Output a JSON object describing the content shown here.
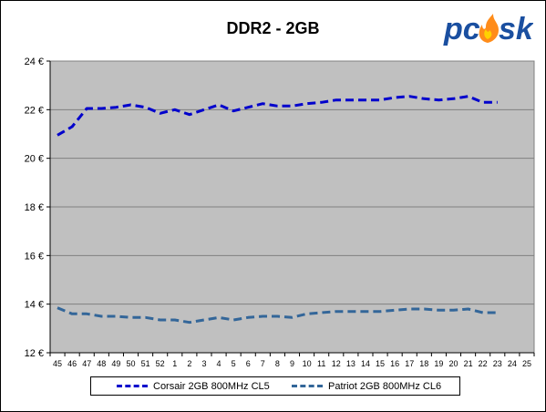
{
  "title": "DDR2 - 2GB",
  "logo_text": "pc sk",
  "colors": {
    "plot_bg": "#C0C0C0",
    "grid": "#808080",
    "corsair": "#0000CC",
    "patriot": "#336699"
  },
  "chart_data": {
    "type": "line",
    "title": "DDR2 - 2GB",
    "xlabel": "",
    "ylabel": "",
    "categories": [
      "45",
      "46",
      "47",
      "48",
      "49",
      "50",
      "51",
      "52",
      "1",
      "2",
      "3",
      "4",
      "5",
      "6",
      "7",
      "8",
      "9",
      "10",
      "11",
      "12",
      "13",
      "14",
      "15",
      "16",
      "17",
      "18",
      "19",
      "20",
      "21",
      "22",
      "23",
      "24",
      "25"
    ],
    "ylim": [
      12,
      24
    ],
    "yticks": [
      12,
      14,
      16,
      18,
      20,
      22,
      24
    ],
    "ytick_labels": [
      "12 €",
      "14 €",
      "16 €",
      "18 €",
      "20 €",
      "22 €",
      "24 €"
    ],
    "grid": true,
    "legend": "bottom",
    "series": [
      {
        "name": "Corsair 2GB 800MHz CL5",
        "color": "#0000CC",
        "values": [
          20.95,
          21.3,
          22.05,
          22.05,
          22.1,
          22.2,
          22.1,
          21.85,
          22.0,
          21.8,
          22.0,
          22.2,
          21.95,
          22.1,
          22.25,
          22.15,
          22.15,
          22.25,
          22.3,
          22.4,
          22.4,
          22.4,
          22.4,
          22.5,
          22.55,
          22.45,
          22.4,
          22.45,
          22.55,
          22.3,
          22.3,
          null,
          null
        ]
      },
      {
        "name": "Patriot 2GB 800MHz CL6",
        "color": "#336699",
        "values": [
          13.85,
          13.6,
          13.6,
          13.5,
          13.5,
          13.45,
          13.45,
          13.35,
          13.35,
          13.25,
          13.35,
          13.45,
          13.35,
          13.45,
          13.5,
          13.5,
          13.45,
          13.6,
          13.65,
          13.7,
          13.7,
          13.7,
          13.7,
          13.75,
          13.8,
          13.8,
          13.75,
          13.75,
          13.8,
          13.65,
          13.65,
          null,
          null
        ]
      }
    ]
  }
}
